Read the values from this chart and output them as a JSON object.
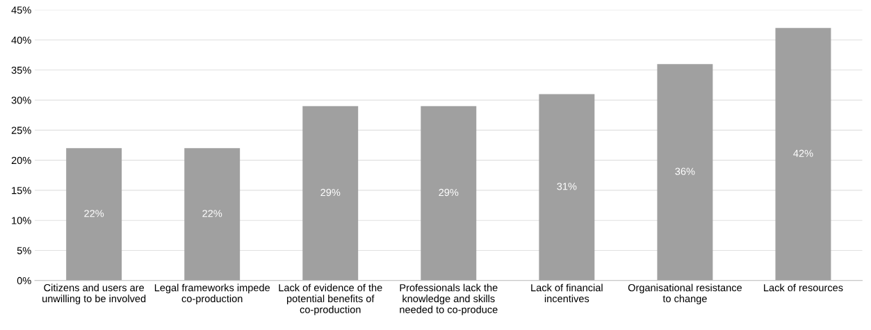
{
  "chart_data": {
    "type": "bar",
    "categories": [
      "Citizens and users are unwilling to be involved",
      "Legal frameworks impede co-production",
      "Lack of evidence of the potential benefits of co-production",
      "Professionals lack the knowledge and skills needed to co-produce",
      "Lack of financial incentives",
      "Organisational resistance to change",
      "Lack of resources"
    ],
    "values": [
      22,
      22,
      29,
      29,
      31,
      36,
      42
    ],
    "value_labels": [
      "22%",
      "22%",
      "29%",
      "29%",
      "31%",
      "36%",
      "42%"
    ],
    "color": "#a0a0a0",
    "ylim": [
      0,
      45
    ],
    "yticks": [
      {
        "value": 0,
        "label": "0%"
      },
      {
        "value": 5,
        "label": "5%"
      },
      {
        "value": 10,
        "label": "10%"
      },
      {
        "value": 15,
        "label": "15%"
      },
      {
        "value": 20,
        "label": "20%"
      },
      {
        "value": 25,
        "label": "25%"
      },
      {
        "value": 30,
        "label": "30%"
      },
      {
        "value": 35,
        "label": "35%"
      },
      {
        "value": 40,
        "label": "40%"
      },
      {
        "value": 45,
        "label": "45%"
      }
    ],
    "grid": "y"
  }
}
